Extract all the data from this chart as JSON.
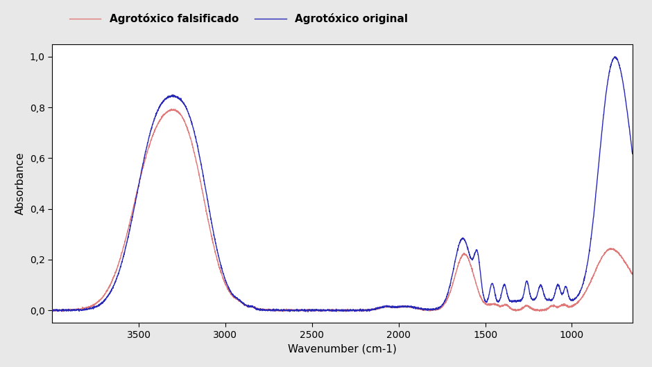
{
  "xlabel": "Wavenumber (cm-1)",
  "ylabel": "Absorbance",
  "xlim": [
    4000,
    650
  ],
  "ylim": [
    -0.05,
    1.05
  ],
  "yticks": [
    0.0,
    0.2,
    0.4,
    0.6,
    0.8,
    1.0
  ],
  "xticks": [
    3500,
    3000,
    2500,
    2000,
    1500,
    1000
  ],
  "color_fake": "#e07878",
  "color_orig": "#2828b8",
  "legend_fake": "Agrotóxico falsificado",
  "legend_orig": "Agrotóxico original",
  "fig_bg": "#e8e8e8",
  "ax_bg": "#ffffff",
  "linewidth": 1.0
}
